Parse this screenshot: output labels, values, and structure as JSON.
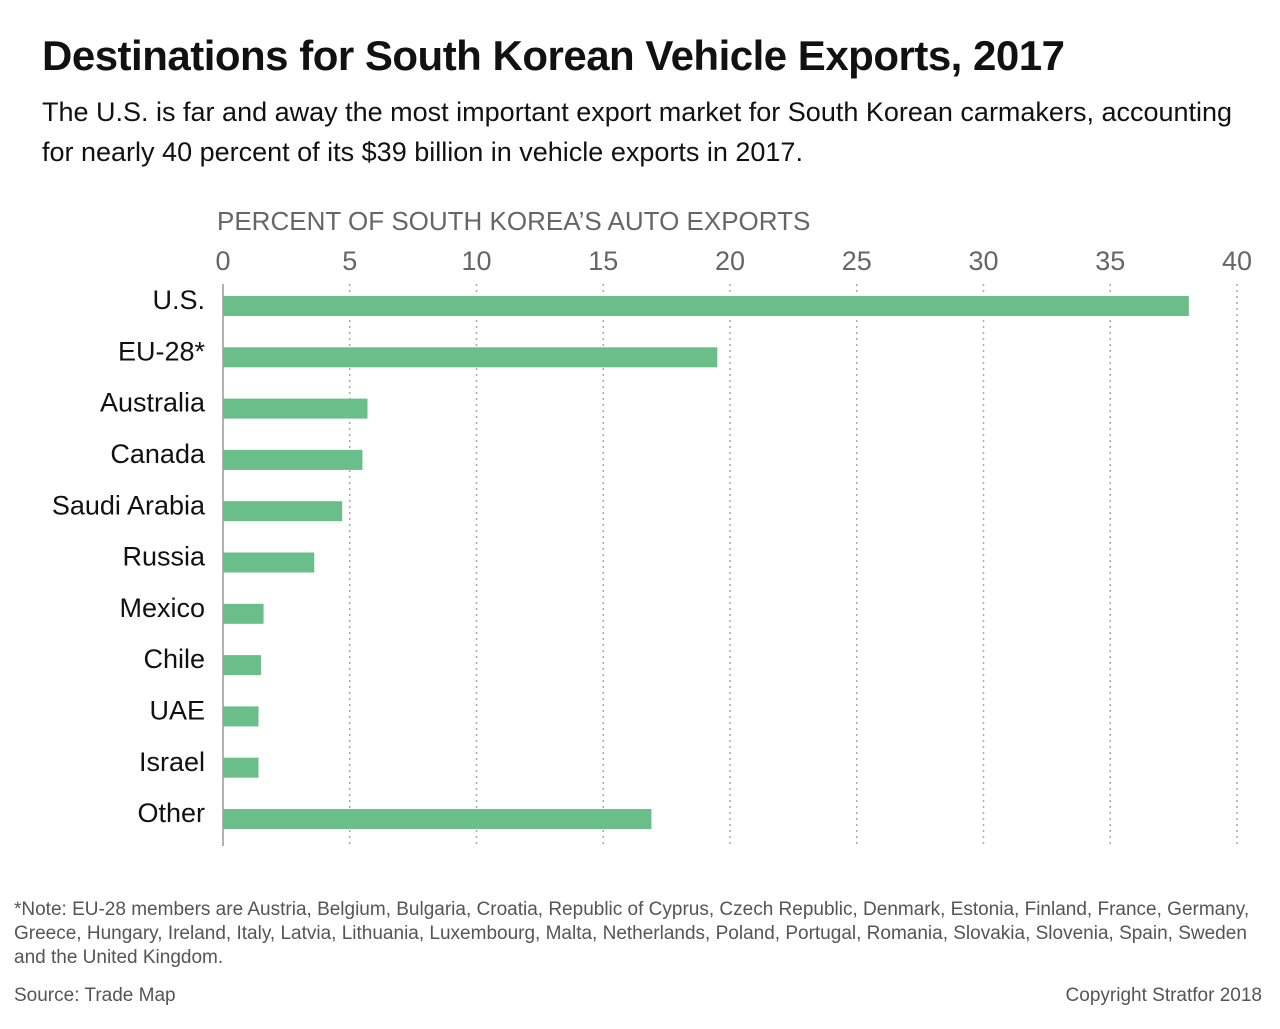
{
  "chart_data": {
    "type": "bar",
    "orientation": "horizontal",
    "title": "Destinations for South Korean Vehicle Exports, 2017",
    "subtitle": "The U.S. is far and away the most important export market for South Korean carmakers, accounting for nearly 40 percent of its $39 billion in vehicle exports in 2017.",
    "x_label": "PERCENT OF SOUTH KOREA’S AUTO EXPORTS",
    "categories": [
      "U.S.",
      "EU-28*",
      "Australia",
      "Canada",
      "Saudi Arabia",
      "Russia",
      "Mexico",
      "Chile",
      "UAE",
      "Israel",
      "Other"
    ],
    "values": [
      38.1,
      19.5,
      5.7,
      5.5,
      4.7,
      3.6,
      1.6,
      1.5,
      1.4,
      1.4,
      16.9
    ],
    "color": "#69be8a",
    "xlim": [
      0,
      40
    ],
    "xticks": [
      0,
      5,
      10,
      15,
      20,
      25,
      30,
      35,
      40
    ],
    "grid": true,
    "note": "*Note: EU-28 members are Austria, Belgium, Bulgaria, Croatia, Republic of Cyprus, Czech Republic, Denmark, Estonia, Finland, France, Germany, Greece, Hungary, Ireland, Italy, Latvia, Lithuania, Luxembourg, Malta, Netherlands, Poland, Portugal, Romania, Slovakia, Slovenia, Spain, Sweden and the United Kingdom.",
    "source": "Source: Trade Map",
    "copyright": "Copyright Stratfor 2018"
  }
}
